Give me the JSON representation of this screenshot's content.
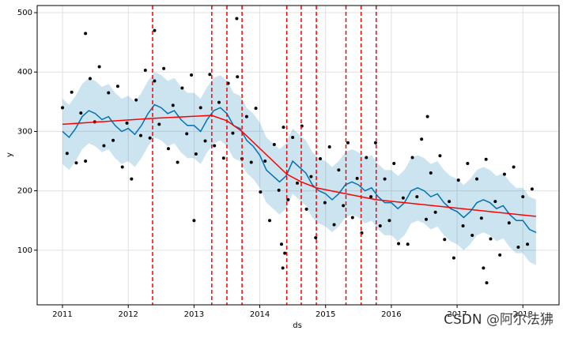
{
  "chart_data": {
    "type": "forecast",
    "xlabel": "ds",
    "ylabel": "y",
    "watermark": "CSDN @阿尔法狒",
    "xlim": [
      2010.615,
      2018.55
    ],
    "ylim": [
      8,
      512
    ],
    "xticks": [
      2011,
      2012,
      2013,
      2014,
      2015,
      2016,
      2017,
      2018
    ],
    "yticks": [
      100,
      200,
      300,
      400,
      500
    ],
    "grid": true,
    "points": {
      "color": "#000000",
      "x": [
        2011.0,
        2011.07,
        2011.14,
        2011.21,
        2011.28,
        2011.35,
        2011.42,
        2011.49,
        2011.56,
        2011.63,
        2011.7,
        2011.77,
        2011.84,
        2011.91,
        2011.98,
        2012.05,
        2012.12,
        2012.19,
        2012.26,
        2012.33,
        2012.4,
        2012.47,
        2012.54,
        2012.61,
        2012.68,
        2012.75,
        2012.82,
        2012.89,
        2012.96,
        2013.03,
        2013.1,
        2013.17,
        2013.24,
        2013.31,
        2013.38,
        2013.45,
        2013.52,
        2013.59,
        2013.66,
        2013.73,
        2013.8,
        2013.87,
        2013.94,
        2014.01,
        2014.08,
        2014.15,
        2014.22,
        2014.29,
        2014.36,
        2014.43,
        2014.5,
        2014.57,
        2014.64,
        2014.71,
        2014.78,
        2014.85,
        2014.92,
        2014.99,
        2015.06,
        2015.13,
        2015.2,
        2015.27,
        2015.34,
        2015.41,
        2015.48,
        2015.55,
        2015.62,
        2015.69,
        2015.76,
        2015.83,
        2015.9,
        2015.97,
        2016.04,
        2016.11,
        2016.18,
        2016.25,
        2016.32,
        2016.39,
        2016.46,
        2016.53,
        2016.6,
        2016.67,
        2016.74,
        2016.81,
        2016.88,
        2016.95,
        2017.02,
        2017.09,
        2017.16,
        2017.23,
        2017.3,
        2017.37,
        2017.44,
        2017.51,
        2017.58,
        2017.65,
        2017.72,
        2017.79,
        2017.86,
        2017.93,
        2018.0,
        2018.07,
        2018.14,
        2014.35,
        2014.38,
        2014.33,
        2012.4,
        2013.65,
        2016.55,
        2017.45,
        2017.4,
        2011.35,
        2013.0
      ],
      "values": [
        340,
        263,
        366,
        247,
        331,
        250,
        389,
        316,
        409,
        276,
        365,
        285,
        376,
        240,
        314,
        220,
        353,
        293,
        403,
        289,
        385,
        312,
        406,
        271,
        344,
        248,
        373,
        296,
        395,
        262,
        340,
        284,
        396,
        276,
        349,
        255,
        381,
        297,
        392,
        254,
        325,
        248,
        339,
        198,
        250,
        150,
        278,
        201,
        307,
        185,
        290,
        213,
        309,
        169,
        224,
        121,
        254,
        180,
        274,
        143,
        235,
        175,
        281,
        155,
        221,
        129,
        256,
        190,
        281,
        141,
        220,
        150,
        246,
        111,
        188,
        110,
        256,
        190,
        287,
        152,
        230,
        164,
        259,
        118,
        182,
        87,
        218,
        141,
        246,
        125,
        220,
        154,
        253,
        119,
        182,
        92,
        228,
        146,
        240,
        105,
        190,
        110,
        203,
        70,
        95,
        110,
        470,
        490,
        325,
        45,
        70,
        465,
        150
      ]
    },
    "forecast": {
      "color": "#0072B2",
      "x": [
        2011.0,
        2011.1,
        2011.2,
        2011.3,
        2011.4,
        2011.5,
        2011.6,
        2011.7,
        2011.8,
        2011.9,
        2012.0,
        2012.1,
        2012.2,
        2012.3,
        2012.4,
        2012.5,
        2012.6,
        2012.7,
        2012.8,
        2012.9,
        2013.0,
        2013.1,
        2013.2,
        2013.3,
        2013.4,
        2013.5,
        2013.6,
        2013.7,
        2013.8,
        2013.9,
        2014.0,
        2014.1,
        2014.2,
        2014.3,
        2014.4,
        2014.5,
        2014.6,
        2014.7,
        2014.8,
        2014.9,
        2015.0,
        2015.1,
        2015.2,
        2015.3,
        2015.4,
        2015.5,
        2015.6,
        2015.7,
        2015.8,
        2015.9,
        2016.0,
        2016.1,
        2016.2,
        2016.3,
        2016.4,
        2016.5,
        2016.6,
        2016.7,
        2016.8,
        2016.9,
        2017.0,
        2017.1,
        2017.2,
        2017.3,
        2017.4,
        2017.5,
        2017.6,
        2017.7,
        2017.8,
        2017.9,
        2018.0,
        2018.1,
        2018.2
      ],
      "values": [
        300,
        290,
        305,
        325,
        335,
        330,
        320,
        325,
        310,
        300,
        305,
        295,
        310,
        330,
        345,
        340,
        330,
        335,
        320,
        310,
        310,
        300,
        320,
        335,
        340,
        330,
        310,
        305,
        285,
        275,
        260,
        235,
        225,
        215,
        225,
        250,
        240,
        230,
        210,
        200,
        195,
        185,
        195,
        210,
        215,
        210,
        200,
        205,
        190,
        180,
        180,
        170,
        180,
        200,
        205,
        200,
        190,
        195,
        180,
        170,
        165,
        155,
        165,
        180,
        185,
        180,
        170,
        175,
        160,
        150,
        150,
        135,
        130
      ],
      "lower": [
        245,
        235,
        250,
        270,
        280,
        275,
        265,
        270,
        255,
        245,
        250,
        240,
        255,
        275,
        290,
        285,
        275,
        280,
        265,
        255,
        255,
        245,
        265,
        280,
        285,
        275,
        255,
        250,
        230,
        220,
        205,
        180,
        170,
        160,
        170,
        195,
        185,
        175,
        155,
        145,
        140,
        130,
        140,
        155,
        160,
        155,
        145,
        150,
        135,
        125,
        125,
        115,
        125,
        145,
        150,
        145,
        135,
        140,
        125,
        115,
        110,
        100,
        110,
        125,
        130,
        125,
        115,
        120,
        105,
        95,
        95,
        80,
        75
      ],
      "upper": [
        355,
        345,
        360,
        380,
        390,
        385,
        375,
        380,
        365,
        355,
        360,
        350,
        365,
        385,
        400,
        395,
        385,
        390,
        375,
        365,
        365,
        355,
        375,
        390,
        395,
        385,
        365,
        360,
        340,
        330,
        315,
        290,
        280,
        270,
        280,
        305,
        295,
        285,
        265,
        255,
        250,
        240,
        250,
        265,
        270,
        265,
        255,
        260,
        245,
        235,
        235,
        225,
        235,
        255,
        260,
        255,
        245,
        250,
        235,
        225,
        220,
        210,
        220,
        235,
        240,
        235,
        225,
        230,
        215,
        205,
        205,
        190,
        185
      ]
    },
    "trend": {
      "color": "#ff0000",
      "x": [
        2011.0,
        2012.37,
        2013.27,
        2013.5,
        2013.73,
        2014.41,
        2014.63,
        2014.86,
        2015.31,
        2015.54,
        2015.77,
        2018.2
      ],
      "values": [
        312,
        322,
        327,
        318,
        300,
        228,
        215,
        205,
        195,
        190,
        185,
        157
      ]
    },
    "changepoints": {
      "color": "#ff0000",
      "x": [
        2012.37,
        2013.27,
        2013.5,
        2013.73,
        2014.41,
        2014.63,
        2014.86,
        2015.31,
        2015.54,
        2015.77
      ]
    }
  }
}
